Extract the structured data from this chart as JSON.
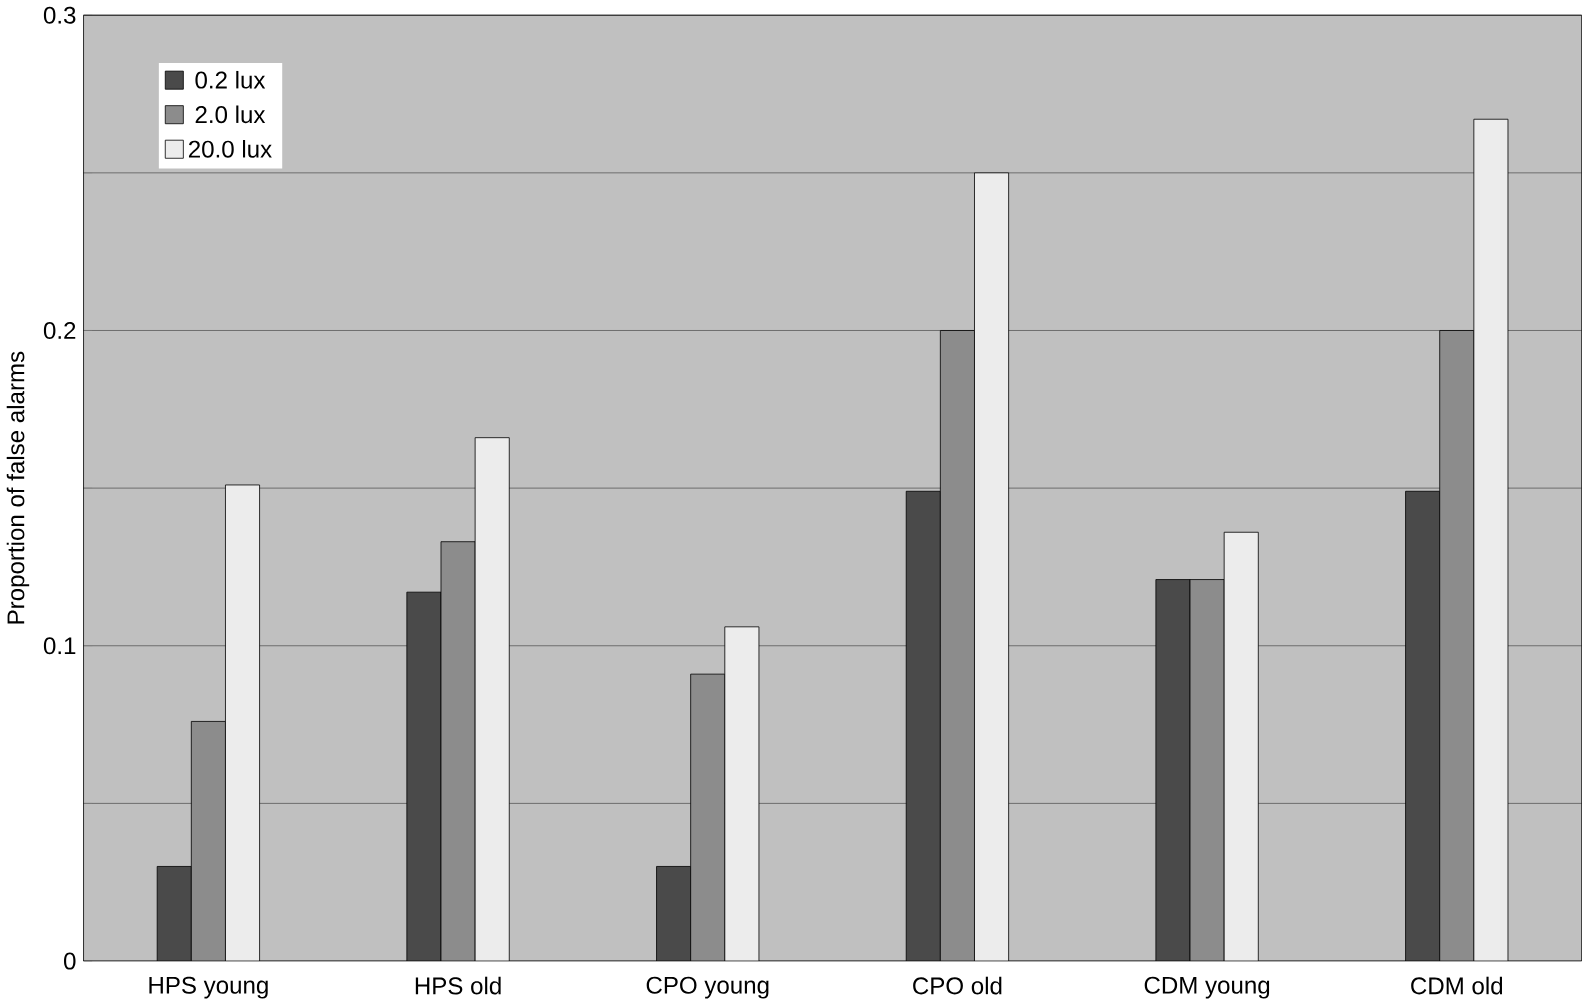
{
  "chart_data": {
    "type": "bar",
    "ylabel": "Proportion of false alarms",
    "categories": [
      "HPS young",
      "HPS old",
      "CPO young",
      "CPO old",
      "CDM young",
      "CDM old"
    ],
    "series": [
      {
        "name": "0.2 lux",
        "color": "#4a4a4a",
        "values": [
          0.03,
          0.117,
          0.03,
          0.149,
          0.121,
          0.149
        ]
      },
      {
        "name": "2.0 lux",
        "color": "#8c8c8c",
        "values": [
          0.076,
          0.133,
          0.091,
          0.2,
          0.121,
          0.2
        ]
      },
      {
        "name": "20.0 lux",
        "color": "#ececec",
        "values": [
          0.151,
          0.166,
          0.106,
          0.25,
          0.136,
          0.267
        ]
      }
    ],
    "ylim": [
      0,
      0.3
    ],
    "yticks": [
      0,
      {
        "value": 0.05,
        "label": null
      },
      0.1,
      {
        "value": 0.15,
        "label": null
      },
      0.2,
      {
        "value": 0.25,
        "label": null
      },
      0.3
    ],
    "grid": "y",
    "legend": "top left"
  }
}
